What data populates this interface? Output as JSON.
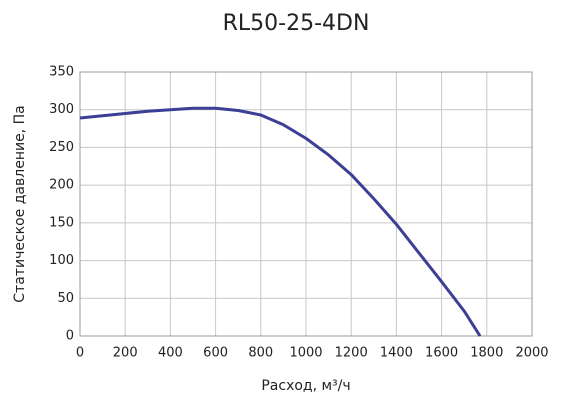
{
  "chart_data": {
    "type": "line",
    "title": "RL50-25-4DN",
    "x_label": "Расход, м³/ч",
    "y_label": "Статическое давление, Па",
    "x": [
      0,
      100,
      200,
      300,
      400,
      500,
      600,
      700,
      800,
      900,
      1000,
      1100,
      1200,
      1300,
      1400,
      1500,
      1600,
      1700,
      1770
    ],
    "series": [
      {
        "name": "RL50-25-4DN",
        "color": "#3c3f96",
        "values": [
          289,
          292,
          295,
          298,
          300,
          302,
          302,
          299,
          293,
          280,
          262,
          240,
          214,
          182,
          148,
          110,
          72,
          33,
          0
        ]
      }
    ],
    "xlim": [
      0,
      2000
    ],
    "xticks": [
      0,
      200,
      400,
      600,
      800,
      1000,
      1200,
      1400,
      1600,
      1800,
      2000
    ],
    "ylim": [
      0,
      350
    ],
    "yticks": [
      0,
      50,
      100,
      150,
      200,
      250,
      300,
      350
    ],
    "grid": true
  }
}
